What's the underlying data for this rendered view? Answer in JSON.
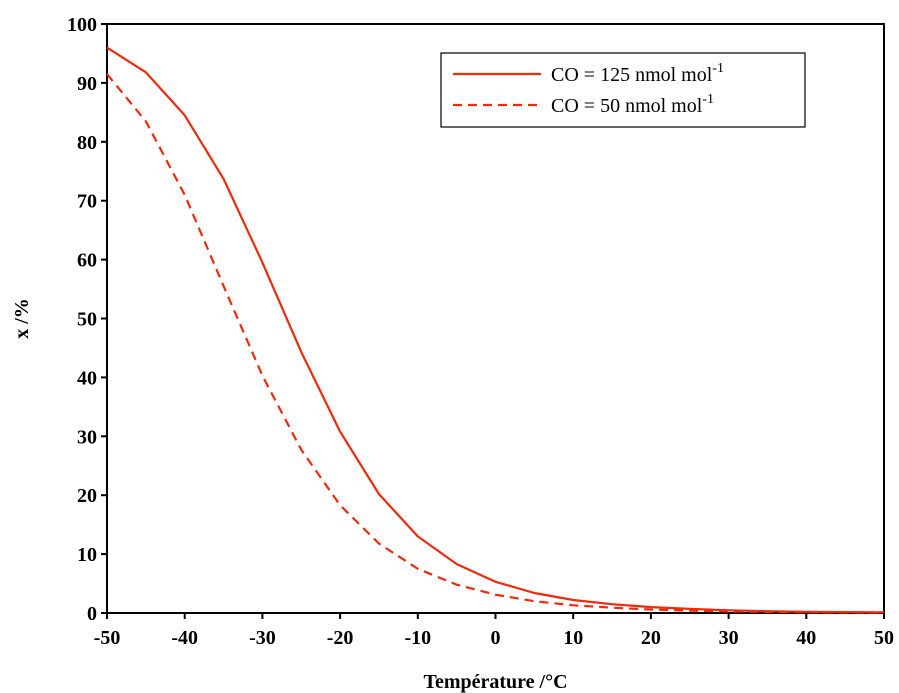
{
  "chart_data": {
    "type": "line",
    "title": "",
    "xlabel": "Température /°C",
    "ylabel": "x /%",
    "xlim": [
      -50,
      50
    ],
    "ylim": [
      0,
      100
    ],
    "xticks": [
      -50,
      -40,
      -30,
      -20,
      -10,
      0,
      10,
      20,
      30,
      40,
      50
    ],
    "yticks": [
      0,
      10,
      20,
      30,
      40,
      50,
      60,
      70,
      80,
      90,
      100
    ],
    "x": [
      -50,
      -45,
      -40,
      -35,
      -30,
      -25,
      -20,
      -15,
      -10,
      -5,
      0,
      5,
      10,
      15,
      20,
      25,
      30,
      35,
      40,
      45,
      50
    ],
    "series": [
      {
        "name": "CO = 125 nmol mol",
        "name_base": "CO = 125 nmol mol",
        "name_sup": "-1",
        "style": "solid",
        "color": "#ee2a0a",
        "values": [
          96,
          91.8,
          84.5,
          73.7,
          59.5,
          44.3,
          30.8,
          20.2,
          13,
          8.3,
          5.3,
          3.4,
          2.2,
          1.5,
          1,
          0.7,
          0.45,
          0.3,
          0.2,
          0.15,
          0.1
        ]
      },
      {
        "name": "CO = 50 nmol mol",
        "name_base": "CO = 50 nmol mol",
        "name_sup": "-1",
        "style": "dashed",
        "color": "#ee2a0a",
        "values": [
          91.5,
          83.5,
          71,
          55.5,
          40.3,
          27.7,
          18.3,
          11.8,
          7.5,
          4.8,
          3.1,
          2,
          1.3,
          0.9,
          0.6,
          0.4,
          0.27,
          0.18,
          0.12,
          0.08,
          0.05
        ]
      }
    ],
    "grid": false,
    "legend_position": "top-right"
  }
}
